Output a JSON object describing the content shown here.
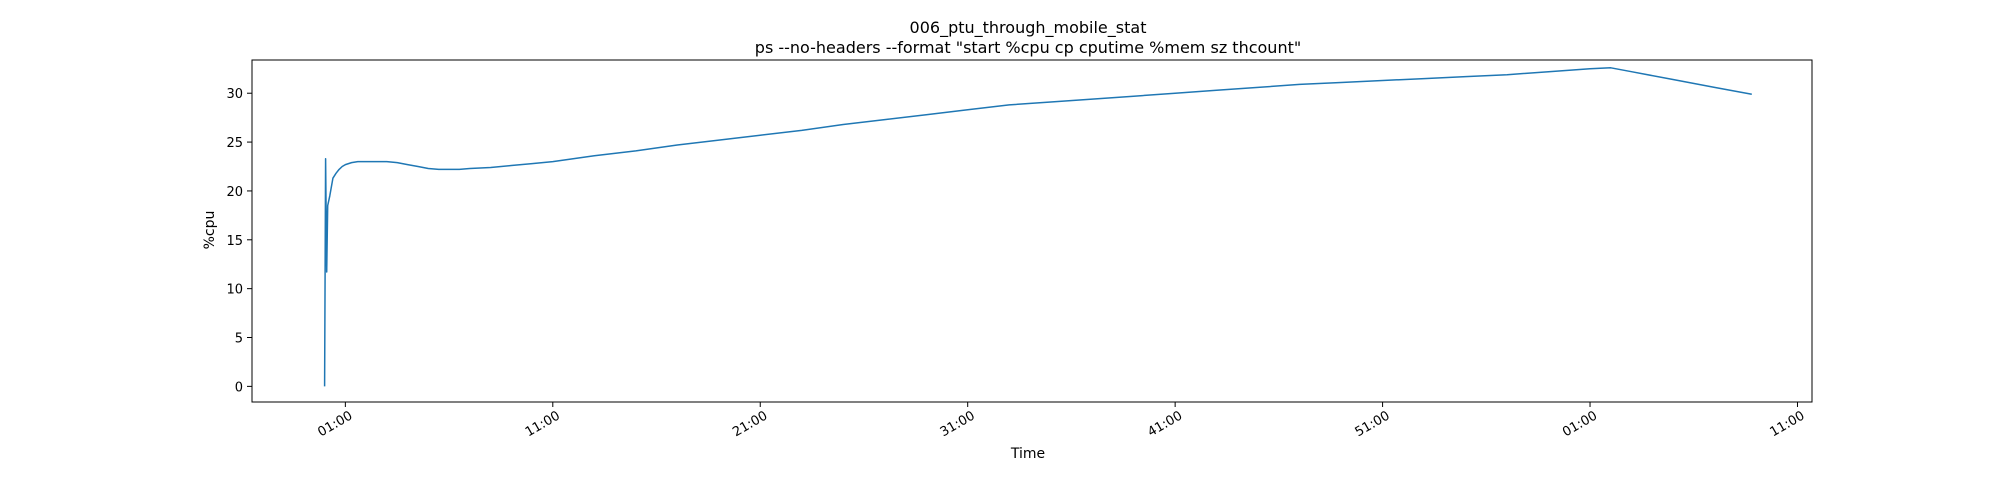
{
  "chart_data": {
    "type": "line",
    "title": "006_ptu_through_mobile_stat",
    "subtitle": "ps --no-headers --format \"start %cpu cp cputime %mem sz thcount\"",
    "xlabel": "Time",
    "ylabel": "%cpu",
    "grid": false,
    "legend": "none",
    "colors": {
      "line": "#1f77b4",
      "axes": "#000000",
      "background": "#ffffff"
    },
    "xlim": [
      -4.5,
      70.7
    ],
    "ylim": [
      -1.6,
      33.4
    ],
    "x_ticks": [
      {
        "value": 0,
        "label": "01:00"
      },
      {
        "value": 10,
        "label": "11:00"
      },
      {
        "value": 20,
        "label": "21:00"
      },
      {
        "value": 30,
        "label": "31:00"
      },
      {
        "value": 40,
        "label": "41:00"
      },
      {
        "value": 50,
        "label": "51:00"
      },
      {
        "value": 60,
        "label": "01:00"
      },
      {
        "value": 70,
        "label": "11:00"
      }
    ],
    "y_ticks": [
      {
        "value": 0,
        "label": "0"
      },
      {
        "value": 5,
        "label": "5"
      },
      {
        "value": 10,
        "label": "10"
      },
      {
        "value": 15,
        "label": "15"
      },
      {
        "value": 20,
        "label": "20"
      },
      {
        "value": 25,
        "label": "25"
      },
      {
        "value": 30,
        "label": "30"
      }
    ],
    "series": [
      {
        "values_x": [
          -1.0,
          -0.95,
          -0.9,
          -0.85,
          -0.75,
          -0.6,
          -0.45,
          -0.3,
          -0.15,
          0.0,
          0.3,
          0.6,
          1.0,
          1.5,
          2.0,
          2.5,
          3.0,
          3.5,
          4.0,
          4.5,
          5.0,
          5.5,
          6.0,
          7.0,
          8.0,
          9.0,
          10.0,
          12.0,
          14.0,
          16.0,
          18.0,
          20.0,
          22.0,
          24.0,
          26.0,
          28.0,
          30.0,
          32.0,
          34.0,
          36.0,
          38.0,
          40.0,
          42.0,
          44.0,
          46.0,
          48.0,
          50.0,
          52.0,
          54.0,
          56.0,
          58.0,
          60.0,
          61.0,
          62.0,
          64.0,
          66.0,
          67.8
        ],
        "values_y": [
          0.0,
          23.3,
          11.7,
          18.5,
          19.5,
          21.3,
          21.8,
          22.2,
          22.5,
          22.7,
          22.9,
          23.0,
          23.0,
          23.0,
          23.0,
          22.9,
          22.7,
          22.5,
          22.3,
          22.2,
          22.2,
          22.2,
          22.3,
          22.4,
          22.6,
          22.8,
          23.0,
          23.6,
          24.1,
          24.7,
          25.2,
          25.7,
          26.2,
          26.8,
          27.3,
          27.8,
          28.3,
          28.8,
          29.1,
          29.4,
          29.7,
          30.0,
          30.3,
          30.6,
          30.9,
          31.1,
          31.3,
          31.5,
          31.7,
          31.9,
          32.2,
          32.5,
          32.6,
          32.2,
          31.4,
          30.6,
          29.9
        ]
      }
    ]
  }
}
